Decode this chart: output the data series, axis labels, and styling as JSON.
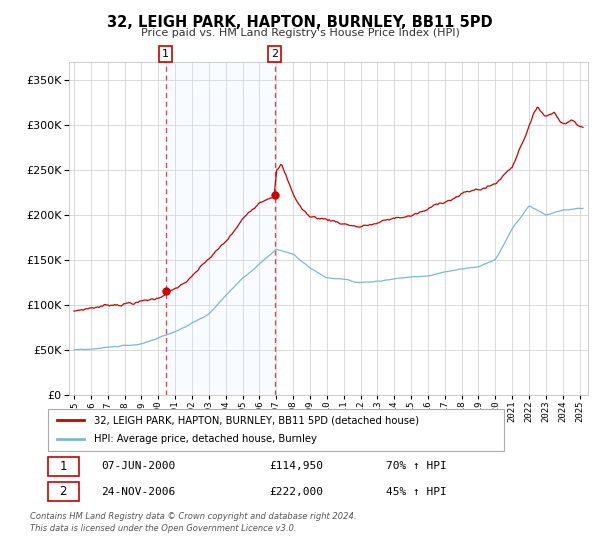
{
  "title": "32, LEIGH PARK, HAPTON, BURNLEY, BB11 5PD",
  "subtitle": "Price paid vs. HM Land Registry's House Price Index (HPI)",
  "legend_line1": "32, LEIGH PARK, HAPTON, BURNLEY, BB11 5PD (detached house)",
  "legend_line2": "HPI: Average price, detached house, Burnley",
  "transaction1_date": "07-JUN-2000",
  "transaction1_price": "£114,950",
  "transaction1_hpi": "70% ↑ HPI",
  "transaction1_year": 2000.44,
  "transaction1_value": 114950,
  "transaction2_date": "24-NOV-2006",
  "transaction2_price": "£222,000",
  "transaction2_hpi": "45% ↑ HPI",
  "transaction2_year": 2006.9,
  "transaction2_value": 222000,
  "footer_line1": "Contains HM Land Registry data © Crown copyright and database right 2024.",
  "footer_line2": "This data is licensed under the Open Government Licence v3.0.",
  "ylim": [
    0,
    370000
  ],
  "xlim_start": 1994.7,
  "xlim_end": 2025.5,
  "hpi_color": "#7ab8d9",
  "price_color": "#cc0000",
  "shade_color": "#ddeeff",
  "grid_color": "#cccccc",
  "vline_color": "#dd4444"
}
